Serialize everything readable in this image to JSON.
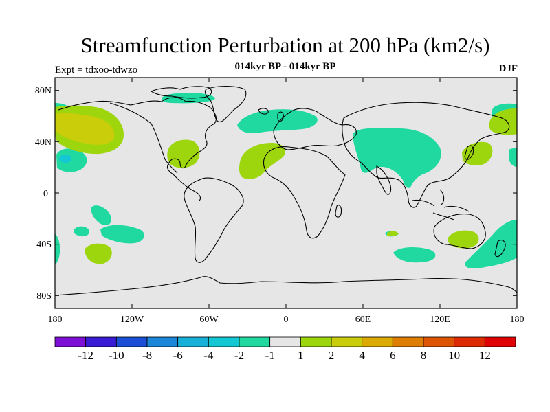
{
  "title": "Streamfunction Perturbation at 200 hPa (km2/s)",
  "subtitle": "014kyr BP - 014kyr BP",
  "experiment": "Expt = tdxoo-tdwzo",
  "season": "DJF",
  "map": {
    "projection": "cylindrical-equidistant",
    "lon_range": [
      -180,
      180
    ],
    "lat_range": [
      -90,
      90
    ],
    "background_color": "#e6e6e6",
    "coastline_color": "#000000",
    "lat_labels": [
      "80N",
      "40N",
      "0",
      "40S",
      "80S"
    ],
    "lon_labels": [
      "180",
      "120W",
      "60W",
      "0",
      "60E",
      "120E",
      "180"
    ]
  },
  "colorbar": {
    "colors": [
      "#7d0fd6",
      "#3a1bd6",
      "#1a4fd6",
      "#1a87d9",
      "#16b0d9",
      "#14c8d3",
      "#20d9a0",
      "#e6e6e6",
      "#9ed60e",
      "#c9cd0a",
      "#dcaa05",
      "#df7e04",
      "#dd5503",
      "#dd2c03",
      "#e00303"
    ],
    "labels": [
      "-12",
      "-10",
      "-8",
      "-6",
      "-4",
      "-2",
      "-1",
      "1",
      "2",
      "4",
      "6",
      "8",
      "10",
      "12"
    ]
  },
  "anomalies": [
    {
      "name": "north-pacific-positive",
      "level": "4",
      "color": "#c9cd0a"
    },
    {
      "name": "north-pacific-positive-outer",
      "level": "2",
      "color": "#9ed60e"
    },
    {
      "name": "eurasia-negative",
      "level": "-1",
      "color": "#20d9a0"
    },
    {
      "name": "north-atlantic-negative",
      "level": "-1",
      "color": "#20d9a0"
    },
    {
      "name": "subtropical-atlantic-positive",
      "level": "2",
      "color": "#9ed60e"
    },
    {
      "name": "gulf-of-mexico-positive",
      "level": "2",
      "color": "#9ed60e"
    },
    {
      "name": "east-pacific-negative-core",
      "level": "-4",
      "color": "#14c8d3"
    },
    {
      "name": "west-pacific-positive",
      "level": "2",
      "color": "#9ed60e"
    },
    {
      "name": "southern-ocean-negative",
      "level": "-1",
      "color": "#20d9a0"
    },
    {
      "name": "south-australia-positive",
      "level": "2",
      "color": "#9ed60e"
    },
    {
      "name": "south-pacific-positive",
      "level": "2",
      "color": "#9ed60e"
    }
  ]
}
